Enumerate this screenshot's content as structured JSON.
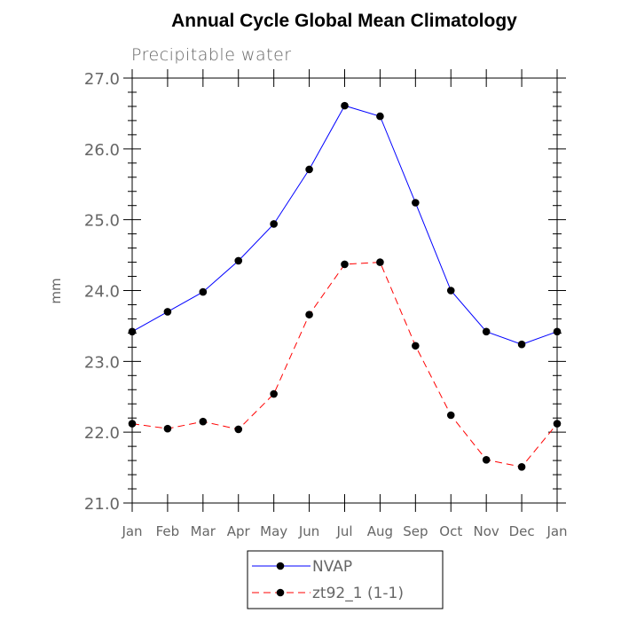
{
  "chart_data": {
    "type": "line",
    "title": "Annual Cycle Global Mean Climatology",
    "subtitle": "Precipitable water",
    "ylabel": "mm",
    "xlabel": "",
    "ylim": [
      21.0,
      27.0
    ],
    "yticks": [
      "21.0",
      "22.0",
      "23.0",
      "24.0",
      "25.0",
      "26.0",
      "27.0"
    ],
    "categories": [
      "Jan",
      "Feb",
      "Mar",
      "Apr",
      "May",
      "Jun",
      "Jul",
      "Aug",
      "Sep",
      "Oct",
      "Nov",
      "Dec",
      "Jan"
    ],
    "series": [
      {
        "name": "NVAP",
        "color": "#0000ff",
        "dash": "solid",
        "values": [
          23.42,
          23.7,
          23.98,
          24.42,
          24.94,
          25.71,
          26.61,
          26.46,
          25.24,
          24.0,
          23.42,
          23.24,
          23.42
        ]
      },
      {
        "name": "zt92_1 (1-1)",
        "color": "#ff0000",
        "dash": "dashed",
        "values": [
          22.12,
          22.05,
          22.15,
          22.04,
          22.54,
          23.66,
          24.37,
          24.4,
          23.22,
          22.24,
          21.61,
          21.51,
          22.12
        ]
      }
    ],
    "grid": false,
    "legend_position": "bottom-center"
  }
}
